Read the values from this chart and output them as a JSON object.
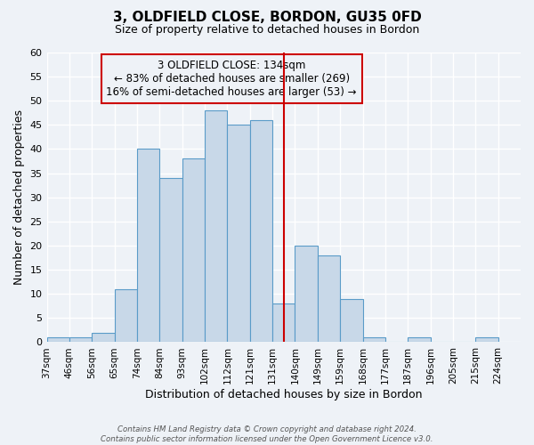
{
  "title": "3, OLDFIELD CLOSE, BORDON, GU35 0FD",
  "subtitle": "Size of property relative to detached houses in Bordon",
  "xlabel": "Distribution of detached houses by size in Bordon",
  "ylabel": "Number of detached properties",
  "bin_labels": [
    "37sqm",
    "46sqm",
    "56sqm",
    "65sqm",
    "74sqm",
    "84sqm",
    "93sqm",
    "102sqm",
    "112sqm",
    "121sqm",
    "131sqm",
    "140sqm",
    "149sqm",
    "159sqm",
    "168sqm",
    "177sqm",
    "187sqm",
    "196sqm",
    "205sqm",
    "215sqm",
    "224sqm"
  ],
  "bar_values": [
    1,
    1,
    2,
    11,
    40,
    34,
    38,
    48,
    45,
    46,
    8,
    20,
    18,
    9,
    1,
    0,
    1,
    0,
    0,
    1
  ],
  "bar_color": "#c8d8e8",
  "bar_edge_color": "#5a9bc8",
  "vline_x": 10.5,
  "vline_color": "#cc0000",
  "annotation_text": "3 OLDFIELD CLOSE: 134sqm\n← 83% of detached houses are smaller (269)\n16% of semi-detached houses are larger (53) →",
  "annotation_box_color": "#cc0000",
  "ylim": [
    0,
    60
  ],
  "yticks": [
    0,
    5,
    10,
    15,
    20,
    25,
    30,
    35,
    40,
    45,
    50,
    55,
    60
  ],
  "footer_line1": "Contains HM Land Registry data © Crown copyright and database right 2024.",
  "footer_line2": "Contains public sector information licensed under the Open Government Licence v3.0.",
  "background_color": "#eef2f7",
  "grid_color": "#ffffff"
}
